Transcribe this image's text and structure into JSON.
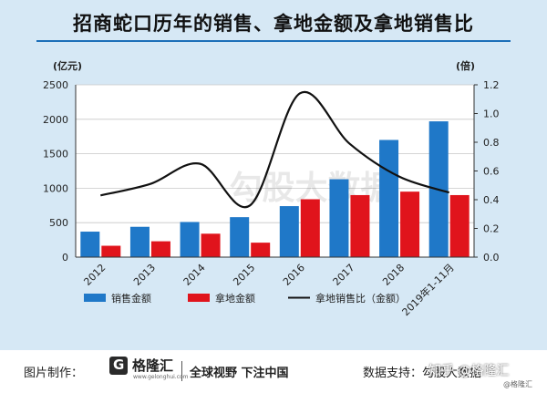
{
  "title": "招商蛇口历年的销售、拿地金额及拿地销售比",
  "chart_data": {
    "type": "bar+line",
    "title": "招商蛇口历年的销售、拿地金额及拿地销售比",
    "left_unit": "(亿元)",
    "right_unit": "(倍)",
    "categories": [
      "2012",
      "2013",
      "2014",
      "2015",
      "2016",
      "2017",
      "2018",
      "2019年1-11月"
    ],
    "left_ylim": [
      0,
      2500
    ],
    "left_ticks": [
      "0",
      "500",
      "1000",
      "1500",
      "2000",
      "2500"
    ],
    "right_ylim": [
      0,
      1.2
    ],
    "right_ticks": [
      "0.0",
      "0.2",
      "0.4",
      "0.6",
      "0.8",
      "1.0",
      "1.2"
    ],
    "series": [
      {
        "name": "销售金额",
        "kind": "bar",
        "color": "#1f78c8",
        "values": [
          370,
          440,
          510,
          580,
          740,
          1130,
          1700,
          1970
        ]
      },
      {
        "name": "拿地金额",
        "kind": "bar",
        "color": "#e0141c",
        "values": [
          165,
          230,
          340,
          210,
          840,
          900,
          950,
          900
        ]
      },
      {
        "name": "拿地销售比（金额）",
        "kind": "line",
        "axis": "right",
        "color": "#111111",
        "values": [
          0.43,
          0.51,
          0.65,
          0.36,
          1.14,
          0.79,
          0.56,
          0.45
        ]
      }
    ],
    "watermark": "勾股大数据"
  },
  "footer": {
    "made_by_label": "图片制作：",
    "logo_text": "格隆汇",
    "logo_domain": "www.gelonghui.com",
    "slogan": "全球视野 下注中国",
    "data_source_label": "数据支持：勾股大数据",
    "zhihu_watermark": "知乎 @格隆汇",
    "corner_watermark": "@格隆汇"
  }
}
